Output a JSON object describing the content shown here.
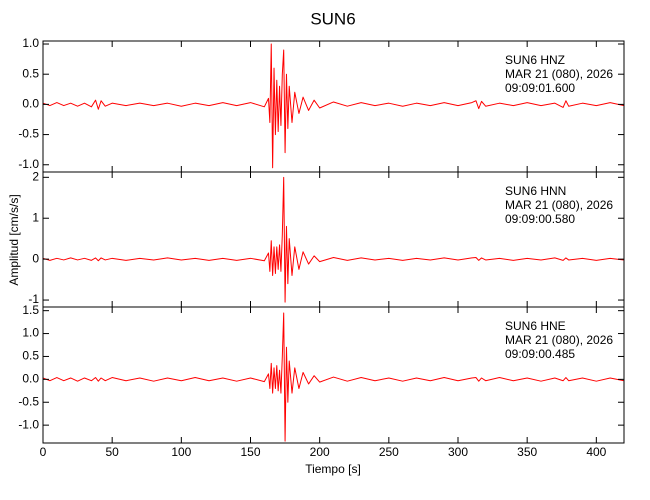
{
  "chart_data": [
    {
      "type": "line",
      "title": "SUN6",
      "annotations": [
        "SUN6   HNZ",
        "MAR 21 (080), 2026",
        "09:09:01.600"
      ],
      "xlim": [
        0,
        420
      ],
      "ylim": [
        -1.12,
        1.05
      ],
      "yticks": [
        {
          "value": -1.0,
          "label": "-1.0"
        },
        -0.5,
        {
          "value": 0.0,
          "label": "0.0"
        },
        0.5,
        {
          "value": 1.0,
          "label": "1.0"
        }
      ],
      "color": "#ff0000",
      "x": [
        0,
        5,
        10,
        15,
        20,
        25,
        30,
        35,
        38,
        40,
        42,
        45,
        50,
        60,
        70,
        80,
        90,
        100,
        110,
        120,
        130,
        140,
        150,
        160,
        163,
        164,
        165,
        166,
        167,
        168,
        169,
        170,
        171,
        172,
        173,
        174,
        175,
        176,
        177,
        178,
        180,
        182,
        185,
        188,
        192,
        196,
        200,
        210,
        220,
        230,
        240,
        250,
        260,
        270,
        280,
        290,
        300,
        310,
        313,
        315,
        317,
        320,
        330,
        340,
        350,
        360,
        370,
        376,
        378,
        380,
        390,
        400,
        410,
        420
      ],
      "values": [
        0.02,
        -0.02,
        0.03,
        -0.02,
        0.02,
        -0.03,
        0.02,
        -0.04,
        0.07,
        -0.08,
        0.06,
        -0.03,
        0.02,
        -0.02,
        0.02,
        -0.02,
        0.02,
        -0.03,
        0.02,
        -0.02,
        0.03,
        -0.02,
        0.03,
        -0.04,
        0.1,
        -0.3,
        1.0,
        -1.05,
        0.6,
        -0.5,
        0.4,
        -0.45,
        0.3,
        -0.35,
        0.5,
        0.9,
        -0.8,
        0.5,
        -0.4,
        0.3,
        -0.3,
        0.2,
        -0.15,
        0.12,
        -0.1,
        0.07,
        -0.06,
        0.04,
        -0.03,
        0.03,
        -0.02,
        0.02,
        -0.03,
        0.02,
        -0.02,
        0.03,
        -0.02,
        0.03,
        0.06,
        -0.07,
        0.05,
        -0.03,
        0.02,
        -0.02,
        0.03,
        -0.02,
        0.02,
        -0.05,
        0.06,
        -0.03,
        0.02,
        -0.02,
        0.03,
        -0.02
      ]
    },
    {
      "type": "line",
      "ylabel": "Amplitud [cm/s/s]",
      "annotations": [
        "SUN6   HNN",
        "MAR 21 (080), 2026",
        "09:09:00.580"
      ],
      "xlim": [
        0,
        420
      ],
      "ylim": [
        -1.17,
        2.13
      ],
      "yticks": [
        -1,
        0,
        1,
        2
      ],
      "color": "#ff0000",
      "x": [
        0,
        5,
        10,
        15,
        20,
        25,
        30,
        35,
        38,
        40,
        42,
        45,
        50,
        60,
        70,
        80,
        90,
        100,
        110,
        120,
        130,
        140,
        150,
        160,
        163,
        164,
        165,
        166,
        167,
        168,
        169,
        170,
        171,
        172,
        173,
        174,
        175,
        176,
        177,
        178,
        180,
        182,
        185,
        188,
        192,
        196,
        200,
        210,
        220,
        230,
        240,
        250,
        260,
        270,
        280,
        290,
        300,
        310,
        313,
        315,
        317,
        320,
        330,
        340,
        350,
        360,
        370,
        376,
        378,
        380,
        390,
        400,
        410,
        420
      ],
      "values": [
        0.02,
        -0.03,
        0.02,
        -0.02,
        0.03,
        -0.02,
        0.02,
        -0.03,
        0.03,
        -0.04,
        0.03,
        -0.02,
        0.02,
        -0.03,
        0.02,
        -0.02,
        0.03,
        -0.02,
        0.02,
        -0.03,
        0.02,
        -0.03,
        0.02,
        -0.04,
        0.15,
        -0.3,
        0.45,
        -0.4,
        0.3,
        -0.35,
        0.3,
        -0.25,
        0.35,
        -0.3,
        0.6,
        2.0,
        -1.05,
        0.8,
        -0.6,
        0.5,
        -0.4,
        0.3,
        -0.25,
        0.18,
        -0.12,
        0.08,
        -0.06,
        0.04,
        -0.03,
        0.03,
        -0.02,
        0.02,
        -0.03,
        0.02,
        -0.02,
        0.03,
        -0.02,
        0.03,
        0.04,
        -0.03,
        0.03,
        -0.02,
        0.02,
        -0.03,
        0.02,
        -0.02,
        0.03,
        -0.03,
        0.03,
        -0.02,
        0.02,
        -0.03,
        0.02,
        -0.02
      ]
    },
    {
      "type": "line",
      "xlabel": "Tiempo [s]",
      "annotations": [
        "SUN6   HNE",
        "MAR 21 (080), 2026",
        "09:09:00.485"
      ],
      "xlim": [
        0,
        420
      ],
      "xticks": [
        0,
        50,
        100,
        150,
        200,
        250,
        300,
        350,
        400
      ],
      "ylim": [
        -1.39,
        1.58
      ],
      "yticks": [
        {
          "value": -1.0,
          "label": "-1.0"
        },
        -0.5,
        {
          "value": 0.0,
          "label": "0.0"
        },
        0.5,
        {
          "value": 1.0,
          "label": "1.0"
        },
        1.5
      ],
      "color": "#ff0000",
      "x": [
        0,
        5,
        10,
        15,
        20,
        25,
        30,
        35,
        38,
        40,
        42,
        45,
        50,
        60,
        70,
        80,
        90,
        100,
        110,
        120,
        130,
        140,
        150,
        160,
        163,
        164,
        165,
        166,
        167,
        168,
        169,
        170,
        171,
        172,
        173,
        174,
        175,
        176,
        177,
        178,
        180,
        182,
        185,
        188,
        192,
        196,
        200,
        210,
        220,
        230,
        240,
        250,
        260,
        270,
        280,
        290,
        300,
        310,
        313,
        315,
        317,
        320,
        330,
        340,
        350,
        360,
        370,
        376,
        378,
        380,
        390,
        400,
        410,
        420
      ],
      "values": [
        0.03,
        -0.03,
        0.04,
        -0.03,
        0.03,
        -0.04,
        0.03,
        -0.03,
        0.04,
        -0.04,
        0.03,
        -0.03,
        0.04,
        -0.03,
        0.03,
        -0.04,
        0.03,
        -0.03,
        0.04,
        -0.03,
        0.03,
        -0.04,
        0.03,
        -0.05,
        0.12,
        -0.2,
        0.35,
        -0.3,
        0.25,
        -0.2,
        0.3,
        -0.25,
        0.2,
        -0.3,
        0.5,
        1.45,
        -1.35,
        0.7,
        -0.5,
        0.4,
        -0.3,
        0.25,
        -0.2,
        0.15,
        -0.1,
        0.08,
        -0.06,
        0.05,
        -0.04,
        0.04,
        -0.03,
        0.03,
        -0.04,
        0.03,
        -0.03,
        0.04,
        -0.03,
        0.03,
        0.04,
        -0.04,
        0.03,
        -0.03,
        0.04,
        -0.03,
        0.03,
        -0.04,
        0.03,
        -0.03,
        0.04,
        -0.03,
        0.03,
        -0.04,
        0.03,
        -0.03
      ]
    }
  ]
}
